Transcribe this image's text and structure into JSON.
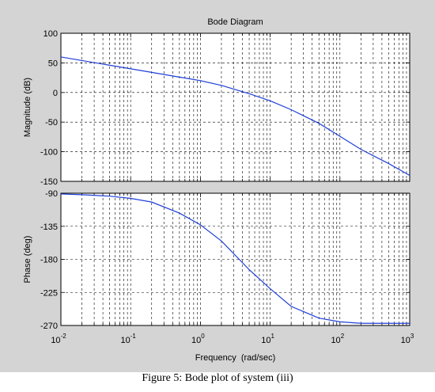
{
  "caption": "Figure 5: Bode plot of system  (iii)",
  "colors": {
    "figure_bg": "#d4d4d4",
    "axes_bg": "#ffffff",
    "line": "#1f3fd8",
    "grid": "#000000"
  },
  "chart_data": [
    {
      "type": "line",
      "title": "Bode Diagram",
      "ylabel": "Magnitude (dB)",
      "xlabel": "",
      "xscale": "log",
      "xlim": [
        0.01,
        1000
      ],
      "ylim": [
        -150,
        100
      ],
      "yticks": [
        100,
        50,
        0,
        -50,
        -100,
        -150
      ],
      "grid": true,
      "series": [
        {
          "x": [
            0.01,
            0.02,
            0.05,
            0.1,
            0.2,
            0.5,
            1,
            2,
            5,
            10,
            20,
            50,
            100,
            200,
            500,
            1000
          ],
          "values": [
            60,
            54,
            46,
            40,
            34,
            26,
            20,
            12,
            -2,
            -14,
            -29,
            -52,
            -74,
            -96,
            -120,
            -140
          ]
        }
      ]
    },
    {
      "type": "line",
      "title": "",
      "ylabel": "Phase (deg)",
      "xlabel": "Frequency  (rad/sec)",
      "xscale": "log",
      "xlim": [
        0.01,
        1000
      ],
      "ylim": [
        -270,
        -90
      ],
      "yticks": [
        -90,
        -135,
        -180,
        -225,
        -270
      ],
      "xticks": [
        {
          "base": "10",
          "exp": "-2"
        },
        {
          "base": "10",
          "exp": "-1"
        },
        {
          "base": "10",
          "exp": "0"
        },
        {
          "base": "10",
          "exp": "1"
        },
        {
          "base": "10",
          "exp": "2"
        },
        {
          "base": "10",
          "exp": "3"
        }
      ],
      "grid": true,
      "series": [
        {
          "x": [
            0.01,
            0.02,
            0.05,
            0.1,
            0.2,
            0.5,
            1,
            2,
            5,
            10,
            20,
            50,
            100,
            200,
            500,
            1000
          ],
          "values": [
            -91,
            -92,
            -94,
            -97,
            -102,
            -117,
            -133,
            -155,
            -194,
            -220,
            -244,
            -260,
            -265,
            -267,
            -267,
            -267
          ]
        }
      ]
    }
  ]
}
